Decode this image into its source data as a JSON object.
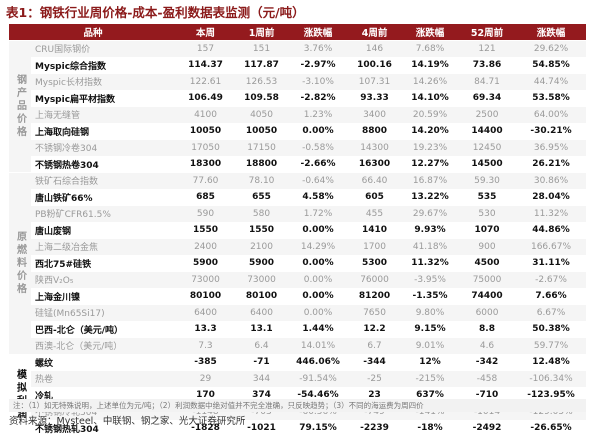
{
  "title": "表1：钢铁行业周价格-成本-盈利数据表监测（元/吨）",
  "headers": [
    "品种",
    "本周",
    "1周前",
    "涨跌幅",
    "4周前",
    "涨跌幅",
    "52周前",
    "涨跌幅"
  ],
  "sections": [
    {
      "label": "钢产品价格",
      "rows": [
        {
          "name": "CRU国际钢价",
          "v": [
            "157",
            "151",
            "3.76%",
            "146",
            "7.68%",
            "121",
            "29.62%"
          ],
          "style": "fade"
        },
        {
          "name": "Myspic综合指数",
          "v": [
            "114.37",
            "117.87",
            "-2.97%",
            "100.16",
            "14.19%",
            "73.86",
            "54.85%"
          ],
          "style": "bold"
        },
        {
          "name": "Myspic长材指数",
          "v": [
            "122.61",
            "126.53",
            "-3.10%",
            "107.31",
            "14.26%",
            "84.71",
            "44.74%"
          ],
          "style": "fade"
        },
        {
          "name": "Myspic扁平材指数",
          "v": [
            "106.49",
            "109.58",
            "-2.82%",
            "93.33",
            "14.10%",
            "69.34",
            "53.58%"
          ],
          "style": "bold"
        },
        {
          "name": "上海无缝管",
          "v": [
            "4100",
            "4050",
            "1.23%",
            "3400",
            "20.59%",
            "2500",
            "64.00%"
          ],
          "style": "fade"
        },
        {
          "name": "上海取向硅钢",
          "v": [
            "10050",
            "10050",
            "0.00%",
            "8800",
            "14.20%",
            "14400",
            "-30.21%"
          ],
          "style": "bold"
        },
        {
          "name": "不锈钢冷卷304",
          "v": [
            "17050",
            "17150",
            "-0.58%",
            "14300",
            "19.23%",
            "12450",
            "36.95%"
          ],
          "style": "fade"
        },
        {
          "name": "不锈钢热卷304",
          "v": [
            "18300",
            "18800",
            "-2.66%",
            "16300",
            "12.27%",
            "14500",
            "26.21%"
          ],
          "style": "bold"
        }
      ]
    },
    {
      "label": "原燃料价格",
      "rows": [
        {
          "name": "铁矿石综合指数",
          "v": [
            "77.60",
            "78.10",
            "-0.64%",
            "66.40",
            "16.87%",
            "59.30",
            "30.86%"
          ],
          "style": "fade"
        },
        {
          "name": "唐山铁矿66%",
          "v": [
            "685",
            "655",
            "4.58%",
            "605",
            "13.22%",
            "535",
            "28.04%"
          ],
          "style": "bold"
        },
        {
          "name": "PB粉矿CFR61.5%",
          "v": [
            "590",
            "580",
            "1.72%",
            "455",
            "29.67%",
            "530",
            "11.32%"
          ],
          "style": "fade"
        },
        {
          "name": "唐山废钢",
          "v": [
            "1550",
            "1550",
            "0.00%",
            "1410",
            "9.93%",
            "1070",
            "44.86%"
          ],
          "style": "bold"
        },
        {
          "name": "上海二级冶金焦",
          "v": [
            "2400",
            "2100",
            "14.29%",
            "1700",
            "41.18%",
            "900",
            "166.67%"
          ],
          "style": "fade"
        },
        {
          "name": "西北75#硅铁",
          "v": [
            "5900",
            "5900",
            "0.00%",
            "5300",
            "11.32%",
            "4500",
            "31.11%"
          ],
          "style": "bold"
        },
        {
          "name": "陕西V₂O₅",
          "v": [
            "73000",
            "73000",
            "0.00%",
            "76000",
            "-3.95%",
            "75000",
            "-2.67%"
          ],
          "style": "fade"
        },
        {
          "name": "上海金川镍",
          "v": [
            "80100",
            "80100",
            "0.00%",
            "81200",
            "-1.35%",
            "74400",
            "7.66%"
          ],
          "style": "bold"
        },
        {
          "name": "硅锰(Mn65Si17)",
          "v": [
            "6400",
            "6400",
            "0.00%",
            "7650",
            "9.80%",
            "6000",
            "6.67%"
          ],
          "style": "fade"
        },
        {
          "name": "巴西-北仑（美元/吨）",
          "v": [
            "13.3",
            "13.1",
            "1.44%",
            "12.2",
            "9.15%",
            "8.8",
            "50.38%"
          ],
          "style": "bold"
        },
        {
          "name": "西澳-北仑（美元/吨）",
          "v": [
            "7.3",
            "6.4",
            "14.01%",
            "6.7",
            "9.01%",
            "4.6",
            "59.77%"
          ],
          "style": "fade"
        }
      ]
    },
    {
      "label": "模拟利润",
      "rows": [
        {
          "name": "螺纹",
          "v": [
            "-385",
            "-71",
            "446.06%",
            "-344",
            "12%",
            "-342",
            "12.48%"
          ],
          "style": "bold"
        },
        {
          "name": "热卷",
          "v": [
            "29",
            "344",
            "-91.54%",
            "-25",
            "-215%",
            "-458",
            "-106.34%"
          ],
          "style": "fade"
        },
        {
          "name": "冷轧",
          "v": [
            "170",
            "374",
            "-54.46%",
            "23",
            "637%",
            "-710",
            "-123.95%"
          ],
          "style": "bold"
        },
        {
          "name": "不锈钢冷轧304",
          "v": [
            "-1148",
            "-703",
            "-60.56%",
            "-749",
            "-141%",
            "-1014",
            "-129.05%"
          ],
          "style": "fade"
        },
        {
          "name": "不锈钢热轧304",
          "v": [
            "-1828",
            "-1021",
            "79.15%",
            "-2239",
            "-18%",
            "-2492",
            "-26.65%"
          ],
          "style": "bold"
        }
      ]
    }
  ],
  "note": "注：（1）如无特殊说明，上述单位为元/吨；（2）利润数据中绝对值并不完全准确，只反映趋势；（3）不同的海运费为周四价",
  "source": "资料来源：Mysteel、中联钢、钢之家、光大证券研究所"
}
